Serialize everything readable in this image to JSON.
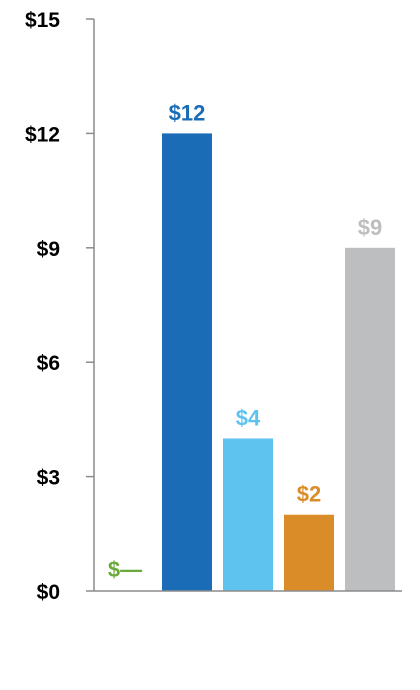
{
  "chart_data": {
    "type": "bar",
    "title": "",
    "xlabel": "",
    "ylabel": "",
    "ylim": [
      0,
      15
    ],
    "yticks": [
      0,
      3,
      6,
      9,
      12,
      15
    ],
    "ytick_labels": [
      "$0",
      "$3",
      "$6",
      "$9",
      "$12",
      "$15"
    ],
    "grid": false,
    "legend": "none",
    "values": [
      0,
      12,
      4,
      2,
      9
    ],
    "data_labels": [
      "$—",
      "$12",
      "$4",
      "$2",
      "$9"
    ],
    "colors": [
      "#6AAA3A",
      "#1B6CB6",
      "#5EC3EE",
      "#D98C28",
      "#BDBEC0"
    ]
  }
}
